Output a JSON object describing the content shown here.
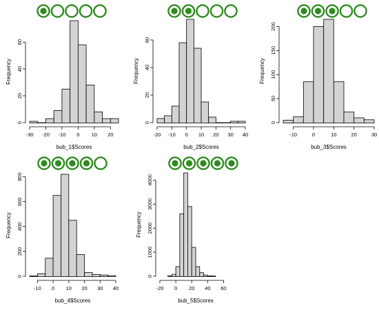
{
  "chart_data": [
    {
      "type": "histogram",
      "xlabel": "bub_1$Scores",
      "ylabel": "Frequency",
      "filled_circles": 1,
      "total_circles": 5,
      "bin_edges": [
        -30,
        -25,
        -20,
        -15,
        -10,
        -5,
        0,
        5,
        10,
        15,
        20,
        25
      ],
      "values": [
        1,
        0,
        3,
        9,
        25,
        76,
        58,
        28,
        8,
        3,
        3
      ],
      "xlim": [
        -30,
        25
      ],
      "ylim": [
        0,
        76
      ],
      "xticks": [
        -30,
        -20,
        -10,
        0,
        10,
        20
      ],
      "yticks": [
        0,
        20,
        40,
        60
      ]
    },
    {
      "type": "histogram",
      "xlabel": "bub_2$Scores",
      "ylabel": "Frequency",
      "filled_circles": 2,
      "total_circles": 5,
      "bin_edges": [
        -20,
        -15,
        -10,
        -5,
        0,
        5,
        10,
        15,
        20,
        25,
        30,
        35,
        40
      ],
      "values": [
        3,
        5,
        12,
        58,
        75,
        54,
        15,
        4,
        0,
        0,
        1,
        1
      ],
      "xlim": [
        -20,
        40
      ],
      "ylim": [
        0,
        75
      ],
      "xticks": [
        -20,
        -10,
        0,
        10,
        20,
        30,
        40
      ],
      "yticks": [
        0,
        20,
        40,
        60
      ]
    },
    {
      "type": "histogram",
      "xlabel": "bub_3$Scores",
      "ylabel": "Frequency",
      "filled_circles": 3,
      "total_circles": 5,
      "bin_edges": [
        -15,
        -10,
        -5,
        0,
        5,
        10,
        15,
        20,
        25,
        30
      ],
      "values": [
        5,
        12,
        85,
        200,
        215,
        85,
        22,
        10,
        6
      ],
      "xlim": [
        -15,
        30
      ],
      "ylim": [
        0,
        215
      ],
      "xticks": [
        -10,
        0,
        10,
        20,
        30
      ],
      "yticks": [
        0,
        50,
        100,
        150,
        200
      ]
    },
    {
      "type": "histogram",
      "xlabel": "bub_4$Scores",
      "ylabel": "Frequency",
      "filled_circles": 4,
      "total_circles": 5,
      "bin_edges": [
        -15,
        -10,
        -5,
        0,
        5,
        10,
        15,
        20,
        25,
        30,
        35,
        40
      ],
      "values": [
        3,
        20,
        145,
        650,
        820,
        450,
        175,
        30,
        15,
        10,
        5
      ],
      "xlim": [
        -15,
        40
      ],
      "ylim": [
        0,
        820
      ],
      "xticks": [
        -10,
        0,
        10,
        20,
        30,
        40
      ],
      "yticks": [
        0,
        200,
        400,
        600,
        800
      ]
    },
    {
      "type": "histogram",
      "xlabel": "bub_5$Scores",
      "ylabel": "Frequency",
      "filled_circles": 5,
      "total_circles": 5,
      "bin_edges": [
        -10,
        -5,
        0,
        5,
        10,
        15,
        20,
        25,
        30,
        35,
        40,
        45,
        50
      ],
      "values": [
        20,
        80,
        400,
        2600,
        4300,
        2900,
        1200,
        400,
        150,
        50,
        20,
        10
      ],
      "xlim": [
        -20,
        70
      ],
      "ylim": [
        0,
        4300
      ],
      "xticks": [
        -20,
        0,
        20,
        40,
        60
      ],
      "yticks": [
        0,
        1000,
        2000,
        3000,
        4000
      ]
    }
  ],
  "colors": {
    "bar_fill": "#d3d3d3",
    "bar_stroke": "#000000",
    "circle": "#2e8b1e"
  }
}
